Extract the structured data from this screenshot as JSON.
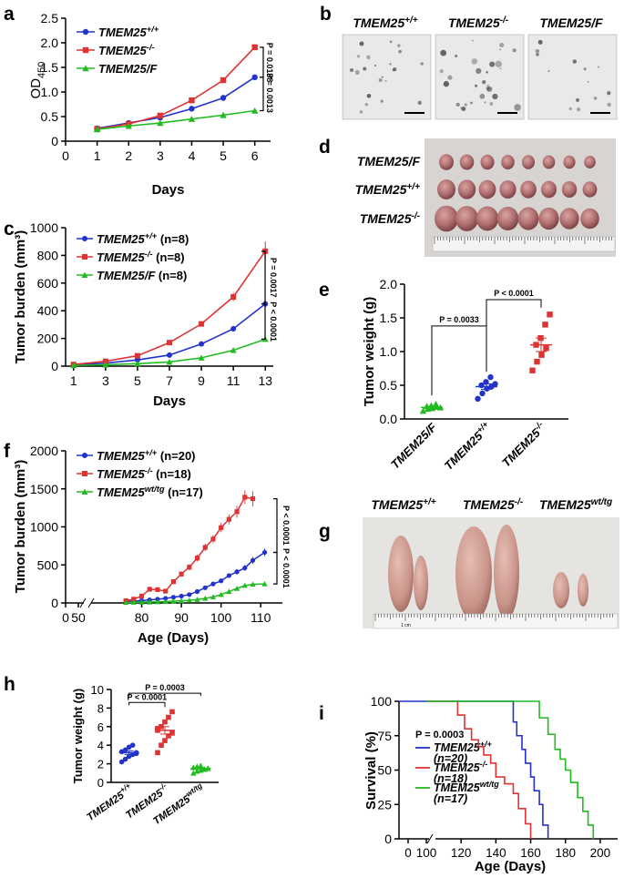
{
  "colors": {
    "wt": "#2233cc",
    "ko": "#dd3333",
    "tg": "#22bb22"
  },
  "panel_letters": [
    "a",
    "b",
    "c",
    "d",
    "e",
    "f",
    "g",
    "h",
    "i"
  ],
  "chart_data": [
    {
      "panel": "a",
      "type": "line",
      "xlabel": "Days",
      "ylabel": "OD",
      "ylabel_sub": "450",
      "xlim": [
        0,
        6.5
      ],
      "ylim": [
        0,
        2.5
      ],
      "xticks": [
        "0",
        "1",
        "2",
        "3",
        "4",
        "5",
        "6"
      ],
      "yticks": [
        "0",
        "0.5",
        "1.0",
        "1.5",
        "2.0",
        "2.5"
      ],
      "series": [
        {
          "name": "TMEM25",
          "sup": "+/+",
          "key": "wt",
          "x": [
            1,
            2,
            3,
            4,
            5,
            6
          ],
          "y": [
            0.26,
            0.37,
            0.48,
            0.66,
            0.88,
            1.3
          ],
          "err": [
            0.02,
            0.02,
            0.03,
            0.03,
            0.06,
            0.04
          ]
        },
        {
          "name": "TMEM25",
          "sup": "-/-",
          "key": "ko",
          "x": [
            1,
            2,
            3,
            4,
            5,
            6
          ],
          "y": [
            0.25,
            0.35,
            0.52,
            0.83,
            1.24,
            1.91
          ],
          "err": [
            0.02,
            0.02,
            0.03,
            0.03,
            0.03,
            0.06
          ]
        },
        {
          "name": "TMEM25/F",
          "sup": "",
          "key": "tg",
          "x": [
            1,
            2,
            3,
            4,
            5,
            6
          ],
          "y": [
            0.24,
            0.31,
            0.37,
            0.45,
            0.53,
            0.62
          ],
          "err": [
            0.01,
            0.02,
            0.02,
            0.02,
            0.02,
            0.02
          ]
        }
      ],
      "pvalues": [
        "P = 0.0138",
        "P = 0.0013"
      ]
    },
    {
      "panel": "c",
      "type": "line",
      "xlabel": "Days",
      "ylabel": "Tumor burden (mm³)",
      "xlim": [
        0.5,
        13.5
      ],
      "ylim": [
        0,
        1000
      ],
      "xticks": [
        "1",
        "3",
        "5",
        "7",
        "9",
        "11",
        "13"
      ],
      "yticks": [
        "0",
        "200",
        "400",
        "600",
        "800",
        "1000"
      ],
      "series": [
        {
          "name": "TMEM25",
          "sup": "+/+",
          "suffix": "(n=8)",
          "key": "wt",
          "x": [
            1,
            3,
            5,
            7,
            9,
            11,
            13
          ],
          "y": [
            10,
            22,
            45,
            80,
            160,
            270,
            450
          ],
          "err": [
            3,
            5,
            8,
            10,
            15,
            20,
            25
          ]
        },
        {
          "name": "TMEM25",
          "sup": "-/-",
          "suffix": "(n=8)",
          "key": "ko",
          "x": [
            1,
            3,
            5,
            7,
            9,
            11,
            13
          ],
          "y": [
            12,
            35,
            75,
            170,
            305,
            500,
            830
          ],
          "err": [
            3,
            6,
            10,
            15,
            20,
            30,
            70
          ]
        },
        {
          "name": "TMEM25/F",
          "sup": "",
          "suffix": "(n=8)",
          "key": "tg",
          "x": [
            1,
            3,
            5,
            7,
            9,
            11,
            13
          ],
          "y": [
            5,
            10,
            18,
            30,
            60,
            115,
            195
          ],
          "err": [
            2,
            3,
            4,
            5,
            8,
            12,
            20
          ]
        }
      ],
      "pvalues": [
        "P = 0.0017",
        "P < 0.0001"
      ]
    },
    {
      "panel": "e",
      "type": "scatter",
      "ylabel": "Tumor weight (g)",
      "ylim": [
        0,
        2.0
      ],
      "yticks": [
        "0.0",
        "0.5",
        "1.0",
        "1.5",
        "2.0"
      ],
      "categories": [
        {
          "name": "TMEM25/F",
          "sup": "",
          "key": "tg",
          "shape": "triangle",
          "values": [
            0.12,
            0.15,
            0.16,
            0.18,
            0.19,
            0.2,
            0.22,
            0.17
          ],
          "mean": 0.17,
          "sem": 0.02
        },
        {
          "name": "TMEM25",
          "sup": "+/+",
          "key": "wt",
          "shape": "circle",
          "values": [
            0.3,
            0.38,
            0.45,
            0.48,
            0.5,
            0.55,
            0.62,
            0.52
          ],
          "mean": 0.48,
          "sem": 0.04
        },
        {
          "name": "TMEM25",
          "sup": "-/-",
          "key": "ko",
          "shape": "square",
          "values": [
            0.72,
            0.85,
            0.95,
            1.05,
            1.1,
            1.2,
            1.4,
            1.55
          ],
          "mean": 1.1,
          "sem": 0.1
        }
      ],
      "pvalues": [
        "P = 0.0033",
        "P < 0.0001"
      ]
    },
    {
      "panel": "f",
      "type": "line",
      "xlabel": "Age (Days)",
      "ylabel": "Tumor burden (mm³)",
      "xlim": [
        70,
        115
      ],
      "ylim": [
        0,
        2000
      ],
      "xticks": [
        "70",
        "80",
        "90",
        "100",
        "110"
      ],
      "xticks_shown": [
        "80",
        "90",
        "100",
        "110"
      ],
      "break_ticks": [
        "0",
        "50"
      ],
      "yticks": [
        "0",
        "500",
        "1000",
        "1500",
        "2000"
      ],
      "series": [
        {
          "name": "TMEM25",
          "sup": "+/+",
          "suffix": "(n=20)",
          "key": "wt",
          "x": [
            76,
            78,
            80,
            82,
            84,
            86,
            88,
            90,
            92,
            94,
            96,
            98,
            100,
            102,
            104,
            106,
            108,
            111
          ],
          "y": [
            20,
            25,
            30,
            40,
            50,
            60,
            75,
            90,
            110,
            150,
            200,
            250,
            290,
            360,
            410,
            460,
            560,
            665
          ],
          "err": [
            5,
            5,
            6,
            8,
            8,
            10,
            10,
            12,
            15,
            18,
            20,
            25,
            25,
            30,
            35,
            40,
            45,
            50
          ]
        },
        {
          "name": "TMEM25",
          "sup": "-/-",
          "suffix": "(n=18)",
          "key": "ko",
          "x": [
            76,
            78,
            80,
            82,
            84,
            86,
            88,
            90,
            92,
            94,
            96,
            98,
            100,
            102,
            104,
            106,
            108
          ],
          "y": [
            30,
            50,
            90,
            180,
            175,
            155,
            280,
            380,
            470,
            590,
            730,
            840,
            990,
            1100,
            1200,
            1390,
            1370
          ],
          "err": [
            8,
            10,
            15,
            20,
            25,
            20,
            30,
            35,
            40,
            45,
            50,
            55,
            60,
            65,
            80,
            90,
            100
          ]
        },
        {
          "name": "TMEM25",
          "sup": "wt/tg",
          "suffix": "(n=17)",
          "key": "tg",
          "x": [
            76,
            78,
            80,
            82,
            84,
            86,
            88,
            90,
            92,
            94,
            96,
            98,
            100,
            102,
            104,
            106,
            108,
            111
          ],
          "y": [
            5,
            8,
            10,
            12,
            15,
            18,
            22,
            28,
            35,
            45,
            60,
            80,
            110,
            150,
            190,
            230,
            245,
            250
          ],
          "err": [
            2,
            2,
            3,
            3,
            4,
            4,
            5,
            5,
            6,
            8,
            10,
            12,
            15,
            18,
            20,
            25,
            25,
            25
          ]
        }
      ],
      "pvalues": [
        "P < 0.0001",
        "P < 0.0001"
      ]
    },
    {
      "panel": "h",
      "type": "scatter",
      "ylabel": "Tumor weight (g)",
      "ylim": [
        0,
        10
      ],
      "yticks": [
        "0",
        "2",
        "4",
        "6",
        "8",
        "10"
      ],
      "categories": [
        {
          "name": "TMEM25",
          "sup": "+/+",
          "key": "wt",
          "shape": "circle",
          "values": [
            2.2,
            2.5,
            2.8,
            3.0,
            3.1,
            3.3,
            3.5,
            3.8,
            4.0,
            3.2
          ],
          "mean": 3.2,
          "sem": 0.2
        },
        {
          "name": "TMEM25",
          "sup": "-/-",
          "key": "ko",
          "shape": "square",
          "values": [
            3.2,
            4.0,
            4.5,
            5.0,
            5.3,
            5.6,
            6.0,
            6.5,
            7.0,
            7.6,
            5.8
          ],
          "mean": 5.6,
          "sem": 0.4
        },
        {
          "name": "TMEM25",
          "sup": "wt/tg",
          "key": "tg",
          "shape": "triangle",
          "values": [
            1.0,
            1.2,
            1.3,
            1.4,
            1.5,
            1.6,
            1.7,
            1.8,
            1.4,
            1.5
          ],
          "mean": 1.5,
          "sem": 0.1
        }
      ],
      "pvalues": [
        "P < 0.0001",
        "P = 0.0003"
      ]
    },
    {
      "panel": "i",
      "type": "line",
      "xlabel": "Age (Days)",
      "ylabel": "Survival (%)",
      "xlim": [
        0,
        210
      ],
      "ylim": [
        0,
        100
      ],
      "xticks": [
        "0",
        "100",
        "120",
        "140",
        "160",
        "180",
        "200"
      ],
      "yticks": [
        "0",
        "25",
        "50",
        "75",
        "100"
      ],
      "series": [
        {
          "name": "TMEM25",
          "sup": "+/+",
          "suffix": "(n=20)",
          "key": "wt",
          "x": [
            100,
            145,
            150,
            152,
            155,
            157,
            160,
            162,
            165,
            167,
            170
          ],
          "y": [
            100,
            100,
            85,
            75,
            65,
            55,
            45,
            35,
            25,
            10,
            0
          ]
        },
        {
          "name": "TMEM25",
          "sup": "-/-",
          "suffix": "(n=18)",
          "key": "ko",
          "x": [
            100,
            115,
            118,
            122,
            126,
            130,
            133,
            137,
            140,
            145,
            150,
            153,
            157,
            160
          ],
          "y": [
            100,
            100,
            90,
            80,
            72,
            67,
            61,
            55,
            45,
            40,
            33,
            22,
            11,
            0
          ]
        },
        {
          "name": "TMEM25",
          "sup": "wt/tg",
          "suffix": "(n=17)",
          "key": "tg",
          "x": [
            100,
            160,
            165,
            170,
            174,
            177,
            180,
            183,
            187,
            190,
            193,
            196
          ],
          "y": [
            100,
            100,
            88,
            76,
            65,
            58,
            50,
            41,
            30,
            20,
            10,
            0
          ]
        }
      ],
      "pvalues": [
        "P = 0.0003"
      ]
    }
  ],
  "panel_b": {
    "labels": [
      {
        "name": "TMEM25",
        "sup": "+/+"
      },
      {
        "name": "TMEM25",
        "sup": "-/-"
      },
      {
        "name": "TMEM25/F",
        "sup": ""
      }
    ]
  },
  "panel_d": {
    "labels": [
      {
        "name": "TMEM25/F",
        "sup": ""
      },
      {
        "name": "TMEM25",
        "sup": "+/+"
      },
      {
        "name": "TMEM25",
        "sup": "-/-"
      }
    ]
  },
  "panel_g": {
    "labels": [
      {
        "name": "TMEM25",
        "sup": "+/+"
      },
      {
        "name": "TMEM25",
        "sup": "-/-"
      },
      {
        "name": "TMEM25",
        "sup": "wt/tg"
      }
    ],
    "ruler_unit": "1 cm"
  }
}
